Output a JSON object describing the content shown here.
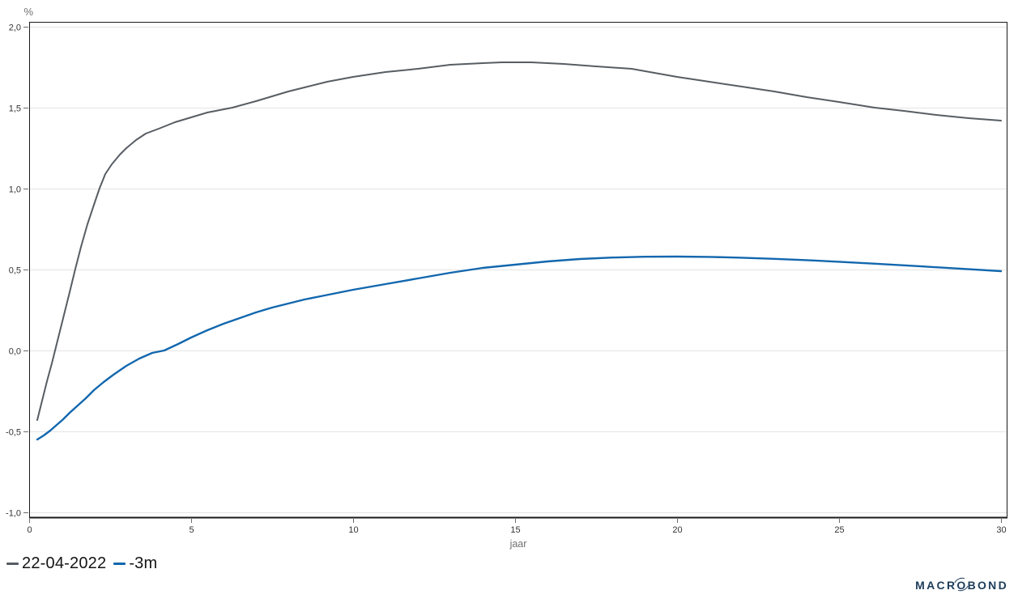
{
  "chart_data": {
    "type": "line",
    "title": "",
    "grid": "horizontal",
    "grid_color": "#e4e4e4",
    "axis_color": "#1a1a1a",
    "tick_color": "#6b6b6b",
    "tick_label_color": "#333333",
    "axis_label_color": "#707070",
    "legend_position": "bottom-left",
    "y_axis": {
      "unit_label": "%",
      "range": [
        -1.035,
        2.03
      ],
      "ticks": [
        {
          "v": 2.0,
          "label": "2,0"
        },
        {
          "v": 1.5,
          "label": "1,5"
        },
        {
          "v": 1.0,
          "label": "1,0"
        },
        {
          "v": 0.5,
          "label": "0,5"
        },
        {
          "v": 0.0,
          "label": "0,0"
        },
        {
          "v": -0.5,
          "label": "-0,5"
        },
        {
          "v": -1.0,
          "label": "-1,0"
        }
      ]
    },
    "x_axis": {
      "label": "jaar",
      "range": [
        0,
        30.2
      ],
      "ticks": [
        {
          "v": 0,
          "label": "0"
        },
        {
          "v": 5,
          "label": "5"
        },
        {
          "v": 10,
          "label": "10"
        },
        {
          "v": 15,
          "label": "15"
        },
        {
          "v": 20,
          "label": "20"
        },
        {
          "v": 25,
          "label": "25"
        },
        {
          "v": 30,
          "label": "30"
        }
      ]
    },
    "series": [
      {
        "name": "22-04-2022",
        "color": "#575d63",
        "width": 2,
        "x": [
          0.25,
          0.4,
          0.55,
          0.7,
          0.8,
          0.95,
          1.1,
          1.25,
          1.42,
          1.6,
          1.8,
          2.0,
          2.17,
          2.35,
          2.55,
          2.8,
          3.0,
          3.3,
          3.6,
          4.0,
          4.5,
          5.0,
          5.5,
          6.27,
          7.0,
          7.5,
          8.0,
          8.6,
          9.2,
          10.0,
          11.0,
          12.0,
          13.0,
          14.0,
          14.6,
          15.5,
          16.5,
          17.5,
          18.6,
          19.3,
          20.0,
          21.0,
          22.0,
          23.0,
          24.0,
          25.0,
          26.1,
          27.0,
          28.0,
          29.0,
          30.0
        ],
        "values": [
          -0.43,
          -0.31,
          -0.19,
          -0.08,
          0.0,
          0.12,
          0.24,
          0.36,
          0.5,
          0.64,
          0.78,
          0.9,
          1.0,
          1.09,
          1.15,
          1.21,
          1.25,
          1.3,
          1.34,
          1.37,
          1.41,
          1.44,
          1.47,
          1.5,
          1.54,
          1.57,
          1.6,
          1.63,
          1.66,
          1.69,
          1.72,
          1.74,
          1.765,
          1.775,
          1.78,
          1.78,
          1.77,
          1.755,
          1.74,
          1.715,
          1.69,
          1.66,
          1.63,
          1.6,
          1.565,
          1.535,
          1.5,
          1.48,
          1.455,
          1.435,
          1.42
        ]
      },
      {
        "name": "-3m",
        "color": "#1267ae",
        "width": 2.4,
        "x": [
          0.25,
          0.45,
          0.65,
          0.85,
          1.05,
          1.25,
          1.5,
          1.75,
          2.0,
          2.3,
          2.6,
          3.0,
          3.4,
          3.8,
          4.17,
          4.6,
          5.0,
          5.5,
          6.0,
          6.5,
          7.0,
          7.5,
          8.0,
          8.5,
          9.0,
          9.5,
          10.0,
          11.0,
          12.0,
          13.0,
          14.0,
          15.0,
          16.0,
          17.0,
          18.0,
          19.0,
          20.0,
          21.0,
          22.0,
          23.0,
          24.0,
          25.0,
          26.0,
          27.0,
          28.0,
          29.0,
          30.0
        ],
        "values": [
          -0.55,
          -0.525,
          -0.495,
          -0.46,
          -0.425,
          -0.385,
          -0.34,
          -0.295,
          -0.245,
          -0.195,
          -0.15,
          -0.095,
          -0.05,
          -0.015,
          0.0,
          0.04,
          0.08,
          0.125,
          0.165,
          0.2,
          0.235,
          0.265,
          0.29,
          0.315,
          0.335,
          0.355,
          0.375,
          0.41,
          0.445,
          0.48,
          0.51,
          0.53,
          0.55,
          0.565,
          0.574,
          0.579,
          0.58,
          0.578,
          0.573,
          0.566,
          0.558,
          0.548,
          0.537,
          0.526,
          0.514,
          0.502,
          0.49
        ]
      }
    ]
  },
  "legend": {
    "items": [
      {
        "label": "22-04-2022",
        "color": "#575d63"
      },
      {
        "label": "-3m",
        "color": "#1267ae"
      }
    ]
  },
  "branding": {
    "logo_pre": "MACR",
    "logo_o": "O",
    "logo_post": "BOND",
    "color": "#1e3c5a"
  }
}
